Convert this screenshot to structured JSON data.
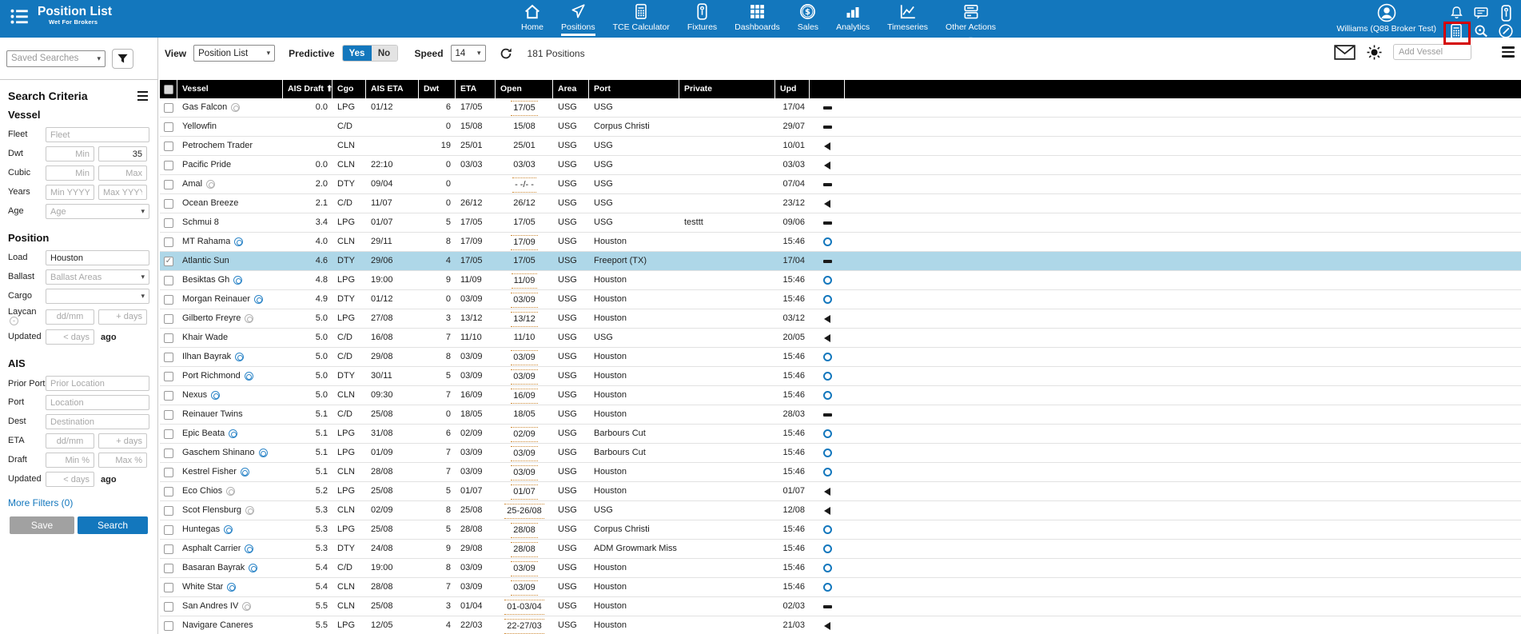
{
  "brand": {
    "title": "Position List",
    "subtitle": "Wet For Brokers"
  },
  "nav": {
    "items": [
      {
        "id": "home",
        "label": "Home",
        "icon": "home",
        "active": false
      },
      {
        "id": "positions",
        "label": "Positions",
        "icon": "send",
        "active": true
      },
      {
        "id": "tce-calculator",
        "label": "TCE Calculator",
        "icon": "calculator",
        "active": false
      },
      {
        "id": "fixtures",
        "label": "Fixtures",
        "icon": "fixture",
        "active": false
      },
      {
        "id": "dashboards",
        "label": "Dashboards",
        "icon": "grid",
        "active": false
      },
      {
        "id": "sales",
        "label": "Sales",
        "icon": "dollar",
        "active": false
      },
      {
        "id": "analytics",
        "label": "Analytics",
        "icon": "bars",
        "active": false
      },
      {
        "id": "timeseries",
        "label": "Timeseries",
        "icon": "line",
        "active": false
      },
      {
        "id": "other-actions",
        "label": "Other Actions",
        "icon": "layers",
        "active": false,
        "caret": true
      }
    ]
  },
  "user": {
    "name": "Williams (Q88 Broker Test)"
  },
  "header_icons": [
    {
      "id": "notifications",
      "icon": "bell"
    },
    {
      "id": "messages",
      "icon": "chat"
    },
    {
      "id": "fixtures-shortcut",
      "icon": "fixture"
    },
    {
      "id": "calculator-shortcut",
      "icon": "calculator"
    },
    {
      "id": "search",
      "icon": "magnifier"
    },
    {
      "id": "edit",
      "icon": "pen"
    }
  ],
  "toolbar": {
    "view_label": "View",
    "view_value": "Position List",
    "predictive_label": "Predictive",
    "yes_label": "Yes",
    "no_label": "No",
    "speed_label": "Speed",
    "speed_value": "14",
    "positions_count": "181 Positions",
    "add_vessel_placeholder": "Add Vessel"
  },
  "saved_searches": {
    "placeholder": "Saved Searches"
  },
  "sidebar": {
    "title": "Search Criteria",
    "vessel_title": "Vessel",
    "fleet_label": "Fleet",
    "fleet_placeholder": "Fleet",
    "dwt_label": "Dwt",
    "dwt_min_placeholder": "Min",
    "dwt_max_value": "35",
    "cubic_label": "Cubic",
    "cubic_min_placeholder": "Min",
    "cubic_max_placeholder": "Max",
    "years_label": "Years",
    "years_min_placeholder": "Min YYYY",
    "years_max_placeholder": "Max YYYY",
    "age_label": "Age",
    "age_placeholder": "Age",
    "position_title": "Position",
    "load_label": "Load",
    "load_value": "Houston",
    "ballast_label": "Ballast",
    "ballast_placeholder": "Ballast Areas",
    "cargo_label": "Cargo",
    "laycan_label": "Laycan",
    "laycan_from_placeholder": "dd/mm",
    "laycan_days_placeholder": "+ days",
    "updated_label": "Updated",
    "updated_days_placeholder": "< days",
    "updated_suffix": "ago",
    "ais_title": "AIS",
    "prior_port_label": "Prior Port",
    "prior_port_placeholder": "Prior Location",
    "port_label": "Port",
    "port_placeholder": "Location",
    "dest_label": "Dest",
    "dest_placeholder": "Destination",
    "eta_label": "ETA",
    "eta_from_placeholder": "dd/mm",
    "eta_days_placeholder": "+ days",
    "draft_label": "Draft",
    "draft_min_placeholder": "Min %",
    "draft_max_placeholder": "Max %",
    "ais_updated_label": "Updated",
    "ais_updated_days_placeholder": "< days",
    "ais_updated_suffix": "ago",
    "more_filters_label": "More Filters (0)",
    "save_label": "Save",
    "search_label": "Search"
  },
  "table": {
    "columns": {
      "vessel": "Vessel",
      "ais_draft": "AIS Draft",
      "cgo": "Cgo",
      "ais_eta": "AIS ETA",
      "dwt": "Dwt",
      "eta": "ETA",
      "open": "Open",
      "area": "Area",
      "port": "Port",
      "private": "Private",
      "upd": "Upd"
    },
    "sorted_by": "ais_draft_asc",
    "rows": [
      {
        "name": "Gas Falcon",
        "badge": "gray",
        "draft": "0.0",
        "cgo": "LPG",
        "aiseta": "01/12",
        "dwt": "6",
        "eta": "17/05",
        "open": "17/05",
        "marked": true,
        "area": "USG",
        "port": "USG",
        "private": "",
        "upd": "17/04",
        "icon": "dash",
        "selected": false,
        "checked": false
      },
      {
        "name": "Yellowfin",
        "badge": null,
        "draft": "",
        "cgo": "C/D",
        "aiseta": "",
        "dwt": "0",
        "eta": "15/08",
        "open": "15/08",
        "marked": false,
        "area": "USG",
        "port": "Corpus Christi",
        "private": "",
        "upd": "29/07",
        "icon": "dash",
        "selected": false,
        "checked": false
      },
      {
        "name": "Petrochem Trader",
        "badge": null,
        "draft": "",
        "cgo": "CLN",
        "aiseta": "",
        "dwt": "19",
        "eta": "25/01",
        "open": "25/01",
        "marked": false,
        "area": "USG",
        "port": "USG",
        "private": "",
        "upd": "10/01",
        "icon": "left",
        "selected": false,
        "checked": false
      },
      {
        "name": "Pacific Pride",
        "badge": null,
        "draft": "0.0",
        "cgo": "CLN",
        "aiseta": "22:10",
        "dwt": "0",
        "eta": "03/03",
        "open": "03/03",
        "marked": false,
        "area": "USG",
        "port": "USG",
        "private": "",
        "upd": "03/03",
        "icon": "left",
        "selected": false,
        "checked": false
      },
      {
        "name": "Amal",
        "badge": "gray",
        "draft": "2.0",
        "cgo": "DTY",
        "aiseta": "09/04",
        "dwt": "0",
        "eta": "",
        "open": "- -/- -",
        "marked": true,
        "area": "USG",
        "port": "USG",
        "private": "",
        "upd": "07/04",
        "icon": "dash",
        "selected": false,
        "checked": false
      },
      {
        "name": "Ocean Breeze",
        "badge": null,
        "draft": "2.1",
        "cgo": "C/D",
        "aiseta": "11/07",
        "dwt": "0",
        "eta": "26/12",
        "open": "26/12",
        "marked": false,
        "area": "USG",
        "port": "USG",
        "private": "",
        "upd": "23/12",
        "icon": "left",
        "selected": false,
        "checked": false
      },
      {
        "name": "Schmui 8",
        "badge": null,
        "draft": "3.4",
        "cgo": "LPG",
        "aiseta": "01/07",
        "dwt": "5",
        "eta": "17/05",
        "open": "17/05",
        "marked": false,
        "area": "USG",
        "port": "USG",
        "private": "testtt",
        "upd": "09/06",
        "icon": "dash",
        "selected": false,
        "checked": false
      },
      {
        "name": "MT Rahama",
        "badge": "blue",
        "draft": "4.0",
        "cgo": "CLN",
        "aiseta": "29/11",
        "dwt": "8",
        "eta": "17/09",
        "open": "17/09",
        "marked": true,
        "area": "USG",
        "port": "Houston",
        "private": "",
        "upd": "15:46",
        "icon": "circle",
        "selected": false,
        "checked": false
      },
      {
        "name": "Atlantic Sun",
        "badge": null,
        "draft": "4.6",
        "cgo": "DTY",
        "aiseta": "29/06",
        "dwt": "4",
        "eta": "17/05",
        "open": "17/05",
        "marked": false,
        "area": "USG",
        "port": "Freeport (TX)",
        "private": "",
        "upd": "17/04",
        "icon": "dash",
        "selected": true,
        "checked": true
      },
      {
        "name": "Besiktas Gh",
        "badge": "blue",
        "draft": "4.8",
        "cgo": "LPG",
        "aiseta": "19:00",
        "dwt": "9",
        "eta": "11/09",
        "open": "11/09",
        "marked": true,
        "area": "USG",
        "port": "Houston",
        "private": "",
        "upd": "15:46",
        "icon": "circle",
        "selected": false,
        "checked": false
      },
      {
        "name": "Morgan Reinauer",
        "badge": "blue",
        "draft": "4.9",
        "cgo": "DTY",
        "aiseta": "01/12",
        "dwt": "0",
        "eta": "03/09",
        "open": "03/09",
        "marked": true,
        "area": "USG",
        "port": "Houston",
        "private": "",
        "upd": "15:46",
        "icon": "circle",
        "selected": false,
        "checked": false
      },
      {
        "name": "Gilberto Freyre",
        "badge": "gray",
        "draft": "5.0",
        "cgo": "LPG",
        "aiseta": "27/08",
        "dwt": "3",
        "eta": "13/12",
        "open": "13/12",
        "marked": true,
        "area": "USG",
        "port": "Houston",
        "private": "",
        "upd": "03/12",
        "icon": "left",
        "selected": false,
        "checked": false
      },
      {
        "name": "Khair Wade",
        "badge": null,
        "draft": "5.0",
        "cgo": "C/D",
        "aiseta": "16/08",
        "dwt": "7",
        "eta": "11/10",
        "open": "11/10",
        "marked": false,
        "area": "USG",
        "port": "USG",
        "private": "",
        "upd": "20/05",
        "icon": "left",
        "selected": false,
        "checked": false
      },
      {
        "name": "Ilhan Bayrak",
        "badge": "blue",
        "draft": "5.0",
        "cgo": "C/D",
        "aiseta": "29/08",
        "dwt": "8",
        "eta": "03/09",
        "open": "03/09",
        "marked": true,
        "area": "USG",
        "port": "Houston",
        "private": "",
        "upd": "15:46",
        "icon": "circle",
        "selected": false,
        "checked": false
      },
      {
        "name": "Port Richmond",
        "badge": "blue",
        "draft": "5.0",
        "cgo": "DTY",
        "aiseta": "30/11",
        "dwt": "5",
        "eta": "03/09",
        "open": "03/09",
        "marked": true,
        "area": "USG",
        "port": "Houston",
        "private": "",
        "upd": "15:46",
        "icon": "circle",
        "selected": false,
        "checked": false
      },
      {
        "name": "Nexus",
        "badge": "blue",
        "draft": "5.0",
        "cgo": "CLN",
        "aiseta": "09:30",
        "dwt": "7",
        "eta": "16/09",
        "open": "16/09",
        "marked": true,
        "area": "USG",
        "port": "Houston",
        "private": "",
        "upd": "15:46",
        "icon": "circle",
        "selected": false,
        "checked": false
      },
      {
        "name": "Reinauer Twins",
        "badge": null,
        "draft": "5.1",
        "cgo": "C/D",
        "aiseta": "25/08",
        "dwt": "0",
        "eta": "18/05",
        "open": "18/05",
        "marked": false,
        "area": "USG",
        "port": "Houston",
        "private": "",
        "upd": "28/03",
        "icon": "dash",
        "selected": false,
        "checked": false
      },
      {
        "name": "Epic Beata",
        "badge": "blue",
        "draft": "5.1",
        "cgo": "LPG",
        "aiseta": "31/08",
        "dwt": "6",
        "eta": "02/09",
        "open": "02/09",
        "marked": true,
        "area": "USG",
        "port": "Barbours Cut",
        "private": "",
        "upd": "15:46",
        "icon": "circle",
        "selected": false,
        "checked": false
      },
      {
        "name": "Gaschem Shinano",
        "badge": "blue",
        "draft": "5.1",
        "cgo": "LPG",
        "aiseta": "01/09",
        "dwt": "7",
        "eta": "03/09",
        "open": "03/09",
        "marked": true,
        "area": "USG",
        "port": "Barbours Cut",
        "private": "",
        "upd": "15:46",
        "icon": "circle",
        "selected": false,
        "checked": false
      },
      {
        "name": "Kestrel Fisher",
        "badge": "blue",
        "draft": "5.1",
        "cgo": "CLN",
        "aiseta": "28/08",
        "dwt": "7",
        "eta": "03/09",
        "open": "03/09",
        "marked": true,
        "area": "USG",
        "port": "Houston",
        "private": "",
        "upd": "15:46",
        "icon": "circle",
        "selected": false,
        "checked": false
      },
      {
        "name": "Eco Chios",
        "badge": "gray",
        "draft": "5.2",
        "cgo": "LPG",
        "aiseta": "25/08",
        "dwt": "5",
        "eta": "01/07",
        "open": "01/07",
        "marked": true,
        "area": "USG",
        "port": "Houston",
        "private": "",
        "upd": "01/07",
        "icon": "left",
        "selected": false,
        "checked": false
      },
      {
        "name": "Scot Flensburg",
        "badge": "gray",
        "draft": "5.3",
        "cgo": "CLN",
        "aiseta": "02/09",
        "dwt": "8",
        "eta": "25/08",
        "open": "25-26/08",
        "marked": true,
        "area": "USG",
        "port": "USG",
        "private": "",
        "upd": "12/08",
        "icon": "left",
        "selected": false,
        "checked": false
      },
      {
        "name": "Huntegas",
        "badge": "blue",
        "draft": "5.3",
        "cgo": "LPG",
        "aiseta": "25/08",
        "dwt": "5",
        "eta": "28/08",
        "open": "28/08",
        "marked": true,
        "area": "USG",
        "port": "Corpus Christi",
        "private": "",
        "upd": "15:46",
        "icon": "circle",
        "selected": false,
        "checked": false
      },
      {
        "name": "Asphalt Carrier",
        "badge": "blue",
        "draft": "5.3",
        "cgo": "DTY",
        "aiseta": "24/08",
        "dwt": "9",
        "eta": "29/08",
        "open": "28/08",
        "marked": true,
        "area": "USG",
        "port": "ADM Growmark Miss",
        "private": "",
        "upd": "15:46",
        "icon": "circle",
        "selected": false,
        "checked": false
      },
      {
        "name": "Basaran Bayrak",
        "badge": "blue",
        "draft": "5.4",
        "cgo": "C/D",
        "aiseta": "19:00",
        "dwt": "8",
        "eta": "03/09",
        "open": "03/09",
        "marked": true,
        "area": "USG",
        "port": "Houston",
        "private": "",
        "upd": "15:46",
        "icon": "circle",
        "selected": false,
        "checked": false
      },
      {
        "name": "White Star",
        "badge": "blue",
        "draft": "5.4",
        "cgo": "CLN",
        "aiseta": "28/08",
        "dwt": "7",
        "eta": "03/09",
        "open": "03/09",
        "marked": true,
        "area": "USG",
        "port": "Houston",
        "private": "",
        "upd": "15:46",
        "icon": "circle",
        "selected": false,
        "checked": false
      },
      {
        "name": "San Andres IV",
        "badge": "gray",
        "draft": "5.5",
        "cgo": "CLN",
        "aiseta": "25/08",
        "dwt": "3",
        "eta": "01/04",
        "open": "01-03/04",
        "marked": true,
        "area": "USG",
        "port": "Houston",
        "private": "",
        "upd": "02/03",
        "icon": "dash",
        "selected": false,
        "checked": false
      },
      {
        "name": "Navigare Caneres",
        "badge": null,
        "draft": "5.5",
        "cgo": "LPG",
        "aiseta": "12/05",
        "dwt": "4",
        "eta": "22/03",
        "open": "22-27/03",
        "marked": true,
        "area": "USG",
        "port": "Houston",
        "private": "",
        "upd": "21/03",
        "icon": "left",
        "selected": false,
        "checked": false
      }
    ]
  },
  "colors": {
    "accent": "#1377bd",
    "selected_row": "#aed7e8",
    "open_marker": "#cc8833",
    "annotation": "#d40000",
    "header_bg": "#000000"
  }
}
